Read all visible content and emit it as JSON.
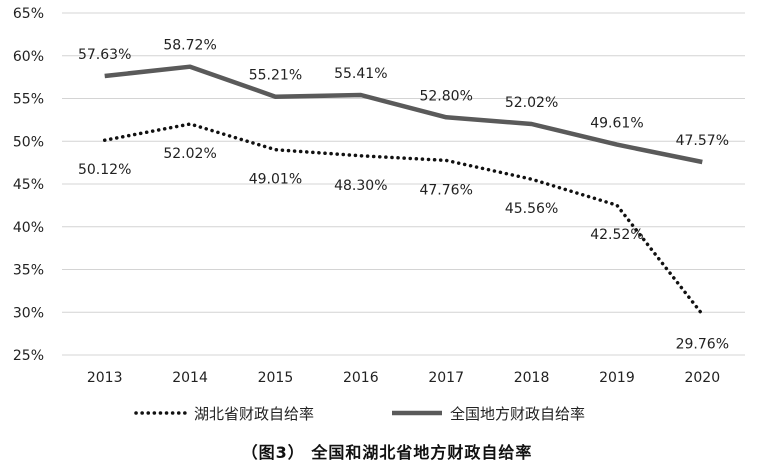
{
  "chart_data": {
    "type": "line",
    "categories": [
      "2013",
      "2014",
      "2015",
      "2016",
      "2017",
      "2018",
      "2019",
      "2020"
    ],
    "ylim": [
      25,
      65
    ],
    "yticks": [
      25,
      30,
      35,
      40,
      45,
      50,
      55,
      60,
      65
    ],
    "ytick_labels": [
      "25%",
      "30%",
      "35%",
      "40%",
      "45%",
      "50%",
      "55%",
      "60%",
      "65%"
    ],
    "grid": true,
    "legend_position": "bottom",
    "series": [
      {
        "name": "湖北省财政自给率",
        "style": "dotted",
        "color": "#111111",
        "values": [
          50.12,
          52.02,
          49.01,
          48.3,
          47.76,
          45.56,
          42.52,
          29.76
        ],
        "labels": [
          "50.12%",
          "52.02%",
          "49.01%",
          "48.30%",
          "47.76%",
          "45.56%",
          "42.52%",
          "29.76%"
        ]
      },
      {
        "name": "全国地方财政自给率",
        "style": "solid",
        "color": "#5a5a5a",
        "values": [
          57.63,
          58.72,
          55.21,
          55.41,
          52.8,
          52.02,
          49.61,
          47.57
        ],
        "labels": [
          "57.63%",
          "58.72%",
          "55.21%",
          "55.41%",
          "52.80%",
          "52.02%",
          "49.61%",
          "47.57%"
        ]
      }
    ],
    "caption": "（图3） 全国和湖北省地方财政自给率"
  }
}
